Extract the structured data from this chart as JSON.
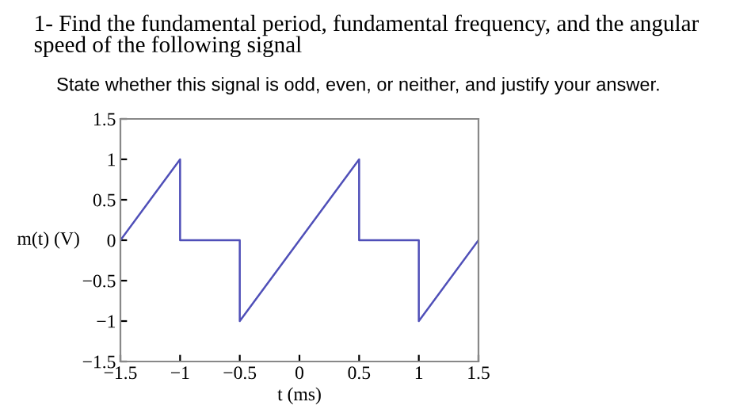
{
  "chart_data": {
    "type": "line",
    "title": "1- Find the fundamental period, fundamental frequency, and the angular speed of the following signal",
    "subtitle": "State whether this signal is odd, even, or neither, and justify your answer.",
    "xlabel": "t (ms)",
    "ylabel": "m(t) (V)",
    "series": [
      {
        "color": "#4f4fb8",
        "x": [
          -1.5,
          -1,
          -1,
          -0.5,
          -0.5,
          0.5,
          0.5,
          1,
          1,
          1.5
        ],
        "values": [
          0,
          1,
          0,
          0,
          -1,
          1,
          0,
          0,
          -1,
          0
        ]
      }
    ],
    "xlim": [
      -1.5,
      1.5
    ],
    "ylim": [
      -1.5,
      1.5
    ],
    "xticks": [
      -1.5,
      -1,
      -0.5,
      0,
      0.5,
      1,
      1.5
    ],
    "yticks": [
      -1.5,
      -1,
      -0.5,
      0,
      0.5,
      1,
      1.5
    ],
    "grid": false,
    "legend": false,
    "marker": "none",
    "line_style": "solid"
  }
}
